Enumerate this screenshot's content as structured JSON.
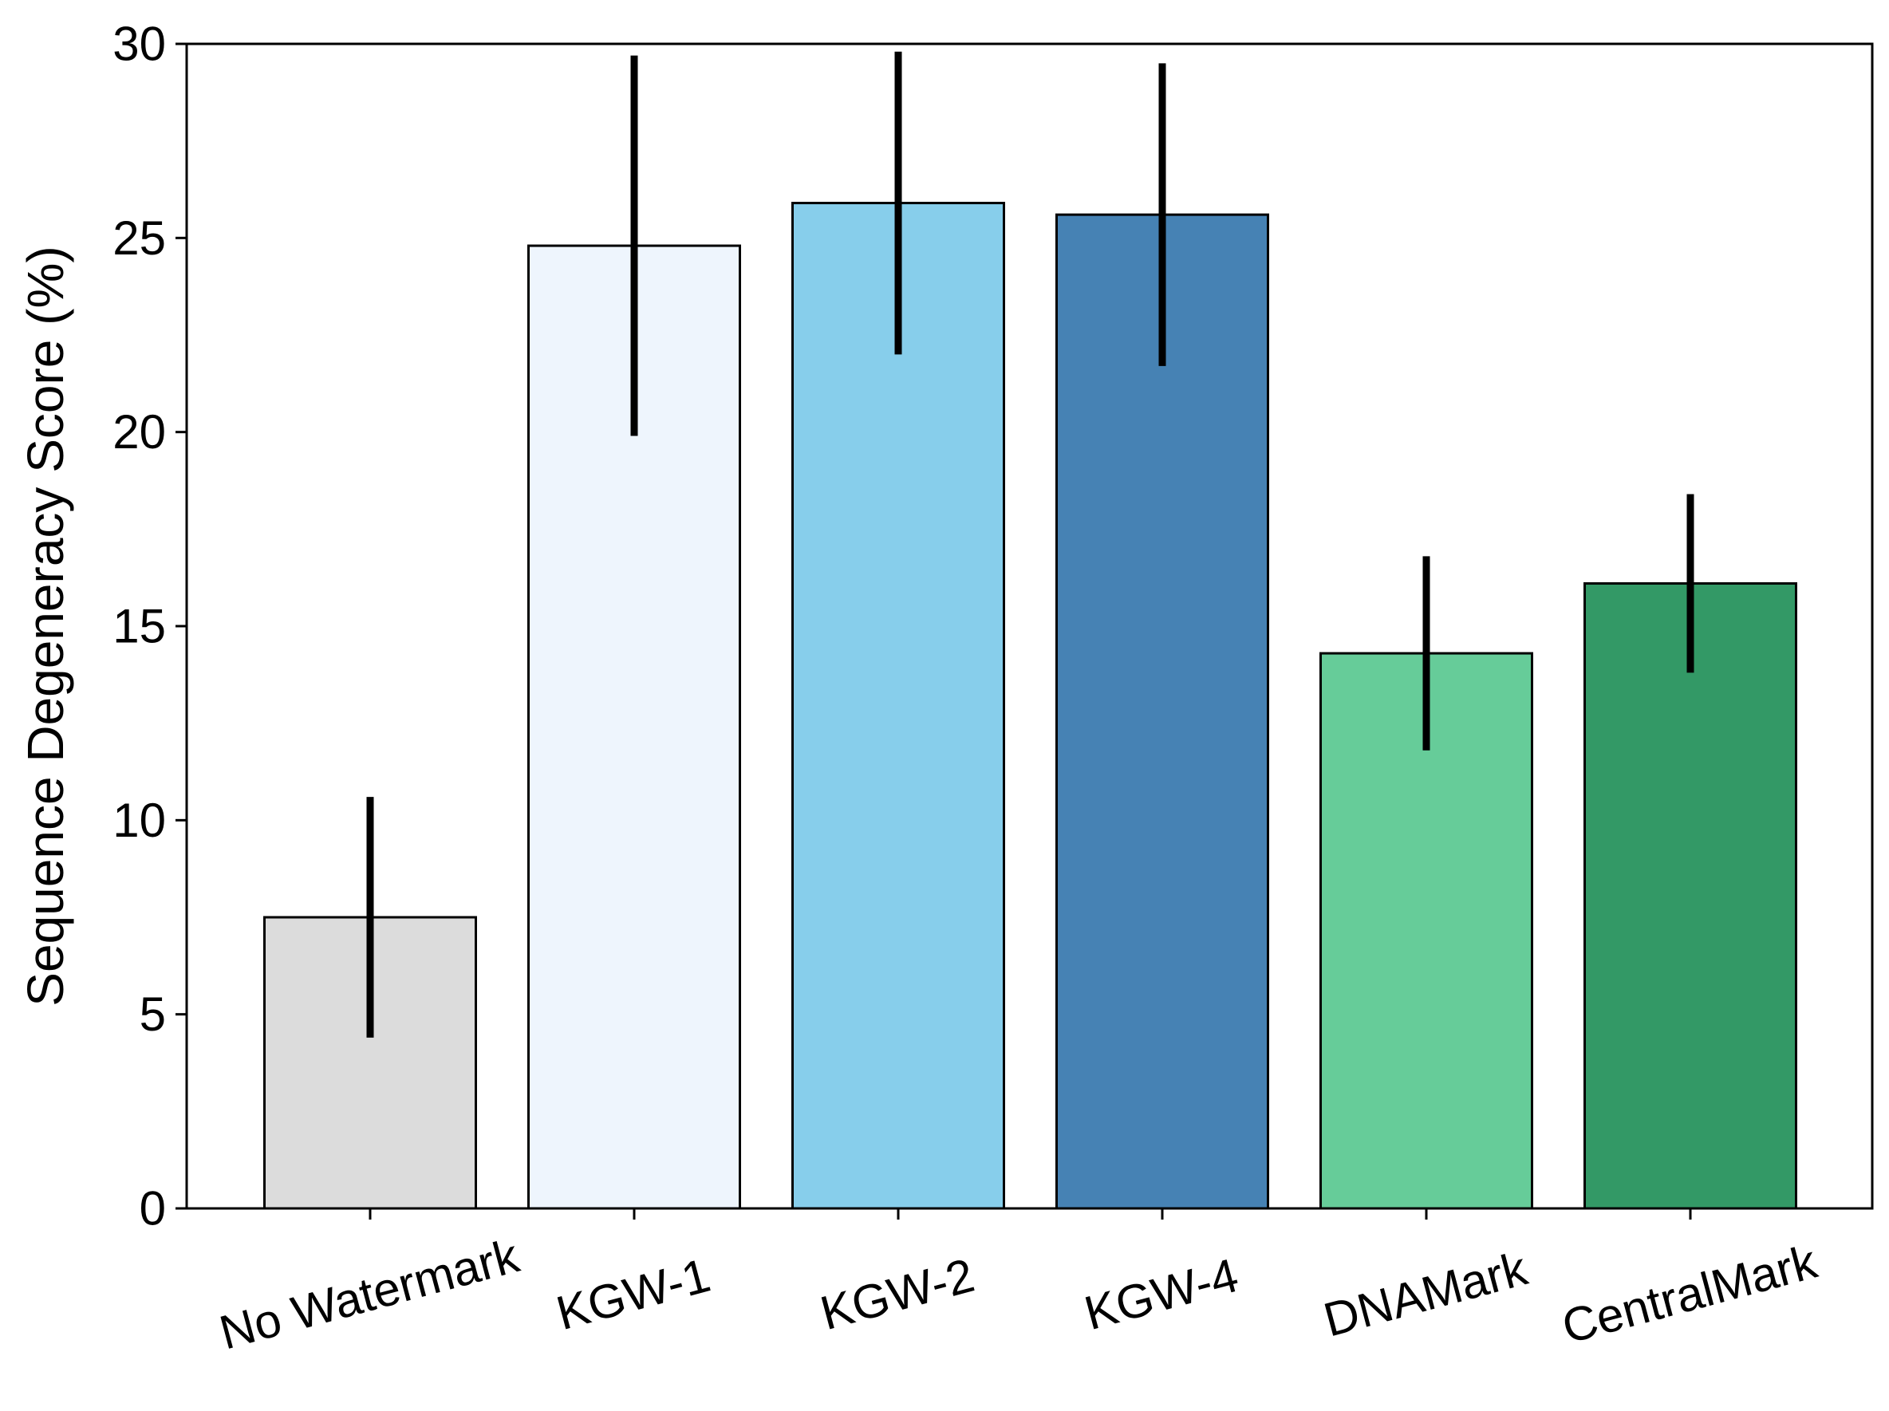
{
  "chart_data": {
    "type": "bar",
    "title": "",
    "xlabel": "",
    "ylabel": "Sequence Degeneracy Score (%)",
    "ylim": [
      0,
      30
    ],
    "yticks": [
      "0",
      "5",
      "10",
      "15",
      "20",
      "25",
      "30"
    ],
    "grid": false,
    "categories": [
      "No Watermark",
      "KGW-1",
      "KGW-2",
      "KGW-4",
      "DNAMark",
      "CentralMark"
    ],
    "values": [
      7.5,
      24.8,
      25.9,
      25.6,
      14.3,
      16.1
    ],
    "error_low": [
      4.4,
      19.9,
      22.0,
      21.7,
      11.8,
      13.8
    ],
    "error_high": [
      10.6,
      29.7,
      29.8,
      29.5,
      16.8,
      18.4
    ],
    "colors": [
      "#dcdcdc",
      "#eef5fd",
      "#87ceeb",
      "#4682b4",
      "#66cc99",
      "#339966"
    ],
    "edge_color": "#000000",
    "error_color": "#000000"
  }
}
